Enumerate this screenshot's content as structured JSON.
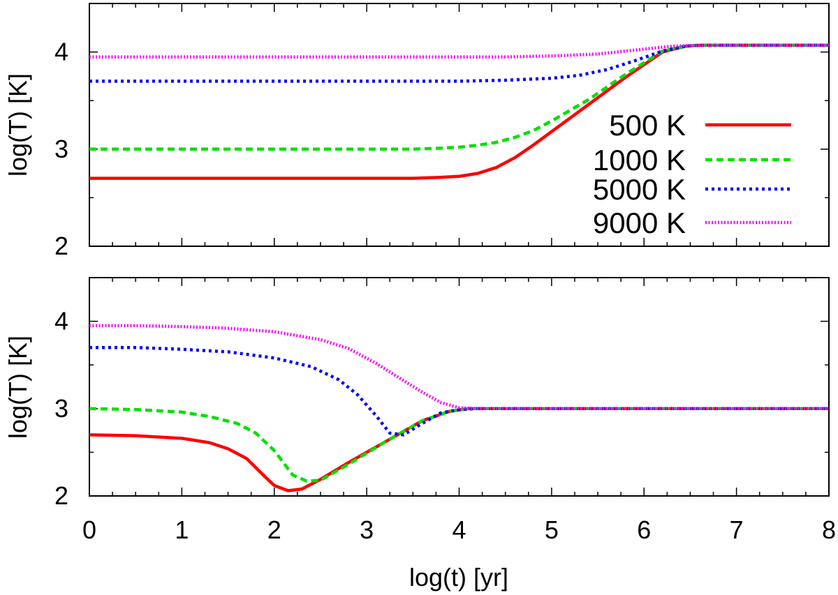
{
  "chart_data": {
    "type": "line",
    "xlabel": "log(t) [yr]",
    "xlim": [
      0,
      8
    ],
    "x_ticks": [
      "0",
      "1",
      "2",
      "3",
      "4",
      "5",
      "6",
      "7",
      "8"
    ],
    "x_minor_step": 0.25,
    "series_styles": [
      {
        "name": "500 K",
        "color": "#ff0000",
        "dash": ""
      },
      {
        "name": "1000 K",
        "color": "#00e000",
        "dash": "10 6"
      },
      {
        "name": "5000 K",
        "color": "#0000ff",
        "dash": "4 5"
      },
      {
        "name": "9000 K",
        "color": "#ff00ff",
        "dash": "2 2.5"
      }
    ],
    "panels": [
      {
        "name": "top",
        "ylabel": "log(T) [K]",
        "ylim": [
          2,
          4.5
        ],
        "y_ticks": [
          "2",
          "3",
          "4"
        ],
        "legend_position": "right",
        "series": [
          {
            "name": "500 K",
            "x": [
              0,
              1,
              2,
              3,
              3.5,
              3.8,
              4.0,
              4.2,
              4.4,
              4.6,
              4.8,
              5.0,
              5.4,
              5.8,
              6.2,
              6.45,
              6.6,
              7,
              8
            ],
            "y": [
              2.7,
              2.7,
              2.7,
              2.7,
              2.7,
              2.71,
              2.72,
              2.75,
              2.81,
              2.91,
              3.04,
              3.18,
              3.46,
              3.74,
              4.0,
              4.06,
              4.07,
              4.07,
              4.07
            ]
          },
          {
            "name": "1000 K",
            "x": [
              0,
              1,
              2,
              3,
              3.5,
              3.8,
              4.0,
              4.2,
              4.4,
              4.6,
              4.8,
              5.0,
              5.4,
              5.8,
              6.2,
              6.45,
              6.6,
              7,
              8
            ],
            "y": [
              3.0,
              3.0,
              3.0,
              3.0,
              3.0,
              3.01,
              3.02,
              3.04,
              3.07,
              3.12,
              3.19,
              3.29,
              3.51,
              3.77,
              4.01,
              4.06,
              4.07,
              4.07,
              4.07
            ]
          },
          {
            "name": "5000 K",
            "x": [
              0,
              1,
              2,
              3,
              4,
              4.5,
              5.0,
              5.3,
              5.6,
              5.9,
              6.2,
              6.45,
              6.6,
              7,
              8
            ],
            "y": [
              3.7,
              3.7,
              3.7,
              3.7,
              3.7,
              3.71,
              3.73,
              3.76,
              3.82,
              3.91,
              4.01,
              4.06,
              4.07,
              4.07,
              4.07
            ]
          },
          {
            "name": "9000 K",
            "x": [
              0,
              1,
              2,
              3,
              4,
              4.5,
              5.0,
              5.5,
              6.0,
              6.3,
              6.6,
              7,
              8
            ],
            "y": [
              3.95,
              3.95,
              3.95,
              3.95,
              3.95,
              3.95,
              3.96,
              3.98,
              4.03,
              4.06,
              4.07,
              4.07,
              4.07
            ]
          }
        ]
      },
      {
        "name": "bottom",
        "ylabel": "log(T) [K]",
        "ylim": [
          2,
          4.5
        ],
        "y_ticks": [
          "2",
          "3",
          "4"
        ],
        "series": [
          {
            "name": "500 K",
            "x": [
              0,
              0.5,
              1.0,
              1.3,
              1.5,
              1.7,
              1.9,
              2.0,
              2.15,
              2.3,
              2.5,
              2.8,
              3.2,
              3.6,
              3.9,
              4.1,
              4.3,
              5,
              6,
              7,
              8
            ],
            "y": [
              2.7,
              2.69,
              2.66,
              2.61,
              2.54,
              2.43,
              2.22,
              2.12,
              2.06,
              2.08,
              2.19,
              2.38,
              2.62,
              2.86,
              2.97,
              3.0,
              3.0,
              3.0,
              3.0,
              3.0,
              3.0
            ]
          },
          {
            "name": "1000 K",
            "x": [
              0,
              0.5,
              1.0,
              1.3,
              1.6,
              1.8,
              2.0,
              2.2,
              2.35,
              2.5,
              2.8,
              3.2,
              3.6,
              3.9,
              4.1,
              4.3,
              5,
              6,
              7,
              8
            ],
            "y": [
              3.0,
              2.99,
              2.96,
              2.91,
              2.83,
              2.72,
              2.52,
              2.24,
              2.17,
              2.18,
              2.36,
              2.62,
              2.86,
              2.97,
              3.0,
              3.0,
              3.0,
              3.0,
              3.0,
              3.0
            ]
          },
          {
            "name": "5000 K",
            "x": [
              0,
              0.5,
              1.0,
              1.5,
              2.0,
              2.4,
              2.7,
              2.9,
              3.1,
              3.25,
              3.4,
              3.6,
              3.8,
              4.0,
              4.2,
              5,
              6,
              7,
              8
            ],
            "y": [
              3.7,
              3.7,
              3.68,
              3.65,
              3.58,
              3.48,
              3.33,
              3.16,
              2.92,
              2.72,
              2.7,
              2.83,
              2.95,
              2.99,
              3.0,
              3.0,
              3.0,
              3.0,
              3.0
            ]
          },
          {
            "name": "9000 K",
            "x": [
              0,
              0.5,
              1.0,
              1.5,
              2.0,
              2.5,
              2.8,
              3.1,
              3.4,
              3.6,
              3.8,
              4.0,
              4.2,
              5,
              6,
              7,
              8
            ],
            "y": [
              3.95,
              3.95,
              3.94,
              3.92,
              3.88,
              3.79,
              3.69,
              3.52,
              3.32,
              3.19,
              3.07,
              3.01,
              3.0,
              3.0,
              3.0,
              3.0,
              3.0
            ]
          }
        ]
      }
    ]
  }
}
